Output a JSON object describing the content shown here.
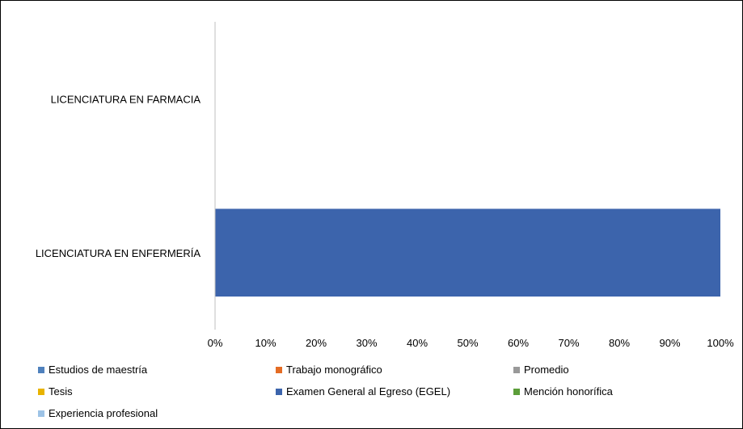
{
  "chart_data": {
    "type": "bar",
    "orientation": "horizontal",
    "stacked": "percent",
    "categories": [
      "LICENCIATURA EN FARMACIA",
      "LICENCIATURA EN ENFERMERÍA"
    ],
    "series": [
      {
        "name": "Estudios de maestría",
        "color": "#4f81bd",
        "values": [
          0,
          0
        ]
      },
      {
        "name": "Trabajo monográfico",
        "color": "#e46c24",
        "values": [
          0,
          0
        ]
      },
      {
        "name": "Promedio",
        "color": "#999999",
        "values": [
          0,
          0
        ]
      },
      {
        "name": "Tesis",
        "color": "#e8b300",
        "values": [
          0,
          0
        ]
      },
      {
        "name": "Examen General al Egreso (EGEL)",
        "color": "#3c64ac",
        "values": [
          0,
          100
        ]
      },
      {
        "name": "Mención honorífica",
        "color": "#5c9e3a",
        "values": [
          0,
          0
        ]
      },
      {
        "name": "Experiencia profesional",
        "color": "#9dc3e6",
        "values": [
          0,
          0
        ]
      }
    ],
    "xticks": [
      "0%",
      "10%",
      "20%",
      "30%",
      "40%",
      "50%",
      "60%",
      "70%",
      "80%",
      "90%",
      "100%"
    ],
    "xlim": [
      0,
      100
    ],
    "grid": false,
    "legend_position": "bottom",
    "title": "",
    "xlabel": "",
    "ylabel": ""
  }
}
